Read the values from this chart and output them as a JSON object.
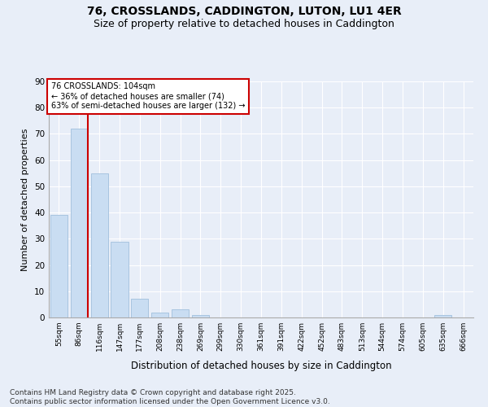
{
  "title": "76, CROSSLANDS, CADDINGTON, LUTON, LU1 4ER",
  "subtitle": "Size of property relative to detached houses in Caddington",
  "xlabel": "Distribution of detached houses by size in Caddington",
  "ylabel": "Number of detached properties",
  "categories": [
    "55sqm",
    "86sqm",
    "116sqm",
    "147sqm",
    "177sqm",
    "208sqm",
    "238sqm",
    "269sqm",
    "299sqm",
    "330sqm",
    "361sqm",
    "391sqm",
    "422sqm",
    "452sqm",
    "483sqm",
    "513sqm",
    "544sqm",
    "574sqm",
    "605sqm",
    "635sqm",
    "666sqm"
  ],
  "values": [
    39,
    72,
    55,
    29,
    7,
    2,
    3,
    1,
    0,
    0,
    0,
    0,
    0,
    0,
    0,
    0,
    0,
    0,
    0,
    1,
    0
  ],
  "bar_color": "#c9ddf2",
  "bar_edge_color": "#a8c4e0",
  "red_line_index": 1,
  "annotation_title": "76 CROSSLANDS: 104sqm",
  "annotation_line1": "← 36% of detached houses are smaller (74)",
  "annotation_line2": "63% of semi-detached houses are larger (132) →",
  "annotation_box_color": "#ffffff",
  "annotation_box_edge_color": "#cc0000",
  "ylim": [
    0,
    90
  ],
  "yticks": [
    0,
    10,
    20,
    30,
    40,
    50,
    60,
    70,
    80,
    90
  ],
  "footer": "Contains HM Land Registry data © Crown copyright and database right 2025.\nContains public sector information licensed under the Open Government Licence v3.0.",
  "background_color": "#e8eef8",
  "plot_bg_color": "#e8eef8",
  "grid_color": "#ffffff",
  "title_fontsize": 10,
  "subtitle_fontsize": 9,
  "footer_fontsize": 6.5
}
